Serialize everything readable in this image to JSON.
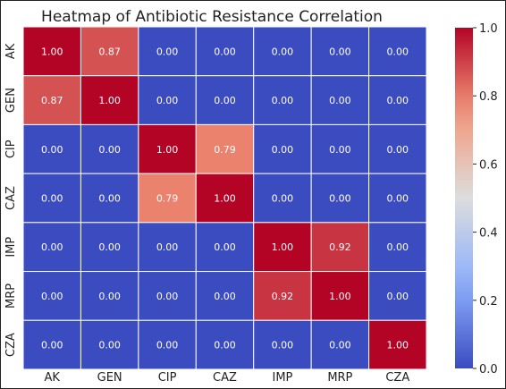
{
  "chart_data": {
    "type": "heatmap",
    "title": "Heatmap of Antibiotic Resistance Correlation",
    "xlabel": "",
    "ylabel": "",
    "x_categories": [
      "AK",
      "GEN",
      "CIP",
      "CAZ",
      "IMP",
      "MRP",
      "CZA"
    ],
    "y_categories": [
      "AK",
      "GEN",
      "CIP",
      "CAZ",
      "IMP",
      "MRP",
      "CZA"
    ],
    "values": [
      [
        1.0,
        0.87,
        0.0,
        0.0,
        0.0,
        0.0,
        0.0
      ],
      [
        0.87,
        1.0,
        0.0,
        0.0,
        0.0,
        0.0,
        0.0
      ],
      [
        0.0,
        0.0,
        1.0,
        0.79,
        0.0,
        0.0,
        0.0
      ],
      [
        0.0,
        0.0,
        0.79,
        1.0,
        0.0,
        0.0,
        0.0
      ],
      [
        0.0,
        0.0,
        0.0,
        0.0,
        1.0,
        0.92,
        0.0
      ],
      [
        0.0,
        0.0,
        0.0,
        0.0,
        0.92,
        1.0,
        0.0
      ],
      [
        0.0,
        0.0,
        0.0,
        0.0,
        0.0,
        0.0,
        1.0
      ]
    ],
    "value_format_decimals": 2,
    "colormap": "coolwarm",
    "color_range": [
      0.0,
      1.0
    ],
    "colorbar": {
      "ticks": [
        0.0,
        0.2,
        0.4,
        0.6,
        0.8,
        1.0
      ],
      "tick_labels": [
        "0.0",
        "0.2",
        "0.4",
        "0.6",
        "0.8",
        "1.0"
      ],
      "placement": "right"
    },
    "cell_border_color": "#ffffff",
    "text_color": "#ffffff"
  }
}
